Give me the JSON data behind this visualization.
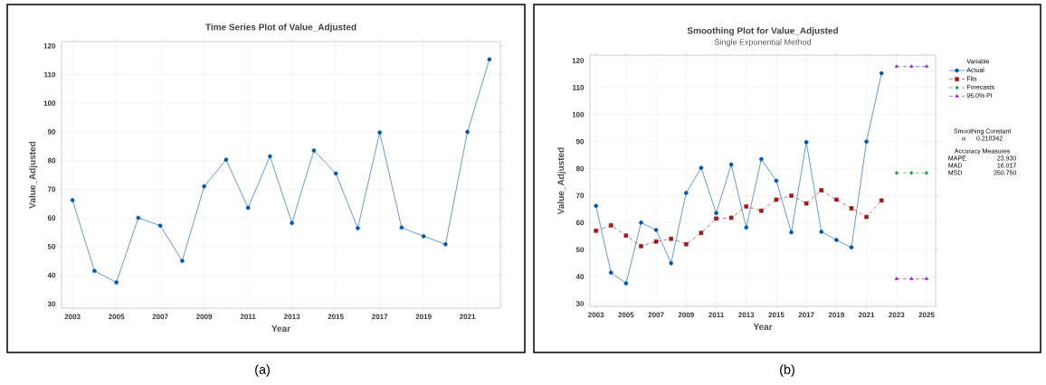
{
  "chart_data": [
    {
      "type": "line",
      "title": "Time Series Plot of Value_Adjusted",
      "xlabel": "Year",
      "ylabel": "Value_Adjusted",
      "xlim": [
        2002.5,
        2022.5
      ],
      "ylim": [
        28.5,
        121.5
      ],
      "xticks": [
        2003,
        2005,
        2007,
        2009,
        2011,
        2013,
        2015,
        2017,
        2019,
        2021
      ],
      "yticks": [
        30,
        40,
        50,
        60,
        70,
        80,
        90,
        100,
        110,
        120
      ],
      "grid": true,
      "marker": "circle",
      "line_style": "solid",
      "annotations": [
        "(a)"
      ],
      "series": [
        {
          "color": "#0055a5",
          "x": [
            2003,
            2004,
            2005,
            2006,
            2007,
            2008,
            2009,
            2010,
            2011,
            2012,
            2013,
            2014,
            2015,
            2016,
            2017,
            2018,
            2019,
            2020,
            2021,
            2022
          ],
          "values": [
            66.2,
            41.5,
            37.5,
            60.0,
            57.3,
            45.0,
            71.0,
            80.3,
            63.5,
            81.5,
            58.2,
            83.5,
            75.5,
            56.4,
            89.8,
            56.6,
            53.6,
            50.8,
            90.0,
            115.3
          ]
        }
      ]
    },
    {
      "type": "line",
      "title": "Smoothing Plot for Value_Adjusted",
      "subtitle": "Single Exponential Method",
      "xlabel": "Year",
      "ylabel": "Value_Adjusted",
      "legend_title": "Variable",
      "legend": "right",
      "xlim": [
        2002.6,
        2025.6
      ],
      "ylim": [
        29,
        122
      ],
      "xticks": [
        2003,
        2005,
        2007,
        2009,
        2011,
        2013,
        2015,
        2017,
        2019,
        2021,
        2023,
        2025
      ],
      "yticks": [
        30,
        40,
        50,
        60,
        70,
        80,
        90,
        100,
        110,
        120
      ],
      "grid": true,
      "annotations": [
        "Smoothing Constant",
        "α",
        "0.218342",
        "Accuracy Measures",
        "MAPE",
        "23.930",
        "MAD",
        "16.017",
        "MSD",
        "350.750",
        "(b)"
      ],
      "series": [
        {
          "name": "Actual",
          "color": "#0055a5",
          "marker": "circle",
          "line_style": "solid",
          "x": [
            2003,
            2004,
            2005,
            2006,
            2007,
            2008,
            2009,
            2010,
            2011,
            2012,
            2013,
            2014,
            2015,
            2016,
            2017,
            2018,
            2019,
            2020,
            2021,
            2022
          ],
          "values": [
            66.2,
            41.5,
            37.5,
            60.0,
            57.3,
            45.0,
            71.0,
            80.3,
            63.5,
            81.5,
            58.2,
            83.5,
            75.5,
            56.4,
            89.8,
            56.6,
            53.6,
            50.8,
            90.0,
            115.3
          ]
        },
        {
          "name": "Fits",
          "color": "#9b1b1b",
          "marker": "square",
          "line_style": "dashed",
          "x": [
            2003,
            2004,
            2005,
            2006,
            2007,
            2008,
            2009,
            2010,
            2011,
            2012,
            2013,
            2014,
            2015,
            2016,
            2017,
            2018,
            2019,
            2020,
            2021,
            2022
          ],
          "values": [
            57.0,
            59.0,
            55.2,
            51.3,
            53.0,
            54.0,
            52.0,
            56.2,
            61.5,
            61.8,
            66.0,
            64.4,
            68.5,
            70.0,
            67.1,
            72.0,
            68.5,
            65.3,
            62.1,
            68.2
          ]
        },
        {
          "name": "Forecasts",
          "color": "#1a9641",
          "marker": "diamond",
          "line_style": "dashed",
          "x": [
            2023,
            2024,
            2025
          ],
          "values": [
            78.4,
            78.4,
            78.4
          ]
        },
        {
          "name": "95.0% PI",
          "color": "#9b1fc4",
          "marker": "triangle",
          "line_style": "dashed",
          "x": [
            2023,
            2024,
            2025
          ],
          "values": [
            117.8,
            117.8,
            117.8
          ]
        },
        {
          "color": "#9b1fc4",
          "marker": "triangle",
          "line_style": "dashed",
          "x": [
            2023,
            2024,
            2025
          ],
          "values": [
            39.2,
            39.2,
            39.2
          ]
        }
      ]
    }
  ]
}
